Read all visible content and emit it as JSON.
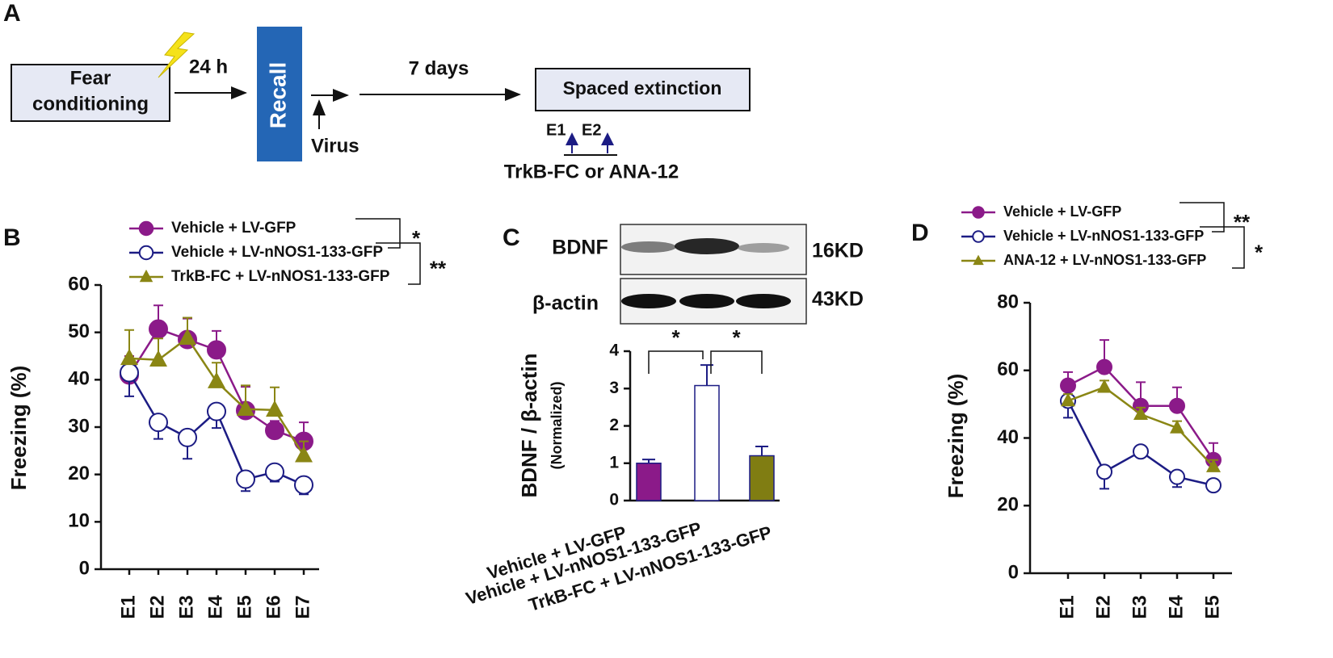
{
  "panel_labels": [
    "A",
    "B",
    "C",
    "D"
  ],
  "panel_a": {
    "step1": [
      "Fear",
      "conditioning"
    ],
    "interval1": "24 h",
    "step2": "Recall",
    "injection": "Virus",
    "interval2": "7 days",
    "step3": "Spaced extinction",
    "sessions": [
      "E1",
      "E2"
    ],
    "treatment": "TrkB-FC or ANA-12"
  },
  "blot": {
    "labels": [
      "BDNF",
      "β-actin"
    ],
    "sizes": [
      "16KD",
      "43KD"
    ]
  },
  "chart_data": [
    {
      "type": "line",
      "ylabel": "Freezing (%)",
      "categories": [
        "E1",
        "E2",
        "E3",
        "E4",
        "E5",
        "E6",
        "E7"
      ],
      "ylim": [
        0,
        60
      ],
      "yticks": [
        0,
        10,
        20,
        30,
        40,
        50,
        60
      ],
      "series": [
        {
          "name": "Vehicle + LV-GFP",
          "color": "#8b1a89",
          "marker": "circle",
          "error_direction": "up",
          "values": [
            41,
            50.7,
            48.5,
            46.3,
            33.5,
            29.3,
            27
          ],
          "errors": [
            4,
            5,
            4.4,
            4,
            5,
            2,
            4
          ]
        },
        {
          "name": "Vehicle + LV-nNOS1-133-GFP",
          "color": "#1c1c84",
          "marker": "open-circle",
          "error_direction": "down",
          "values": [
            41.5,
            31,
            27.8,
            33.3,
            19,
            20.5,
            17.8
          ],
          "errors": [
            5,
            3.5,
            4.5,
            3.5,
            2.5,
            2,
            2
          ]
        },
        {
          "name": "TrkB-FC + LV-nNOS1-133-GFP",
          "color": "#8a8614",
          "marker": "triangle",
          "error_direction": "up",
          "values": [
            44.5,
            44.2,
            48.8,
            39.6,
            33.8,
            33.6,
            24
          ],
          "errors": [
            6,
            4.5,
            4.3,
            4,
            5,
            4.8,
            3
          ]
        }
      ],
      "annotations": [
        "*",
        "**"
      ]
    },
    {
      "type": "bar",
      "ylabel": [
        "BDNF / β-actin",
        "(Normalized)"
      ],
      "categories": [
        "Vehicle + LV-GFP",
        "Vehicle + LV-nNOS1-133-GFP",
        "TrkB-FC + LV-nNOS1-133-GFP"
      ],
      "values": [
        1.0,
        3.08,
        1.2
      ],
      "errors": [
        0.1,
        0.55,
        0.25
      ],
      "colors": [
        "#8b1a89",
        "#ffffff",
        "#807d12"
      ],
      "edgecolor": "#1c1c84",
      "ylim": [
        0,
        4
      ],
      "yticks": [
        0,
        1,
        2,
        3,
        4
      ],
      "annotations": [
        "*",
        "*"
      ]
    },
    {
      "type": "line",
      "ylabel": "Freezing (%)",
      "categories": [
        "E1",
        "E2",
        "E3",
        "E4",
        "E5"
      ],
      "ylim": [
        0,
        80
      ],
      "yticks": [
        0,
        20,
        40,
        60,
        80
      ],
      "series": [
        {
          "name": "Vehicle + LV-GFP",
          "color": "#8b1a89",
          "marker": "circle",
          "error_direction": "up",
          "values": [
            55.5,
            61,
            49.5,
            49.5,
            33.5
          ],
          "errors": [
            4,
            8,
            7,
            5.5,
            5
          ]
        },
        {
          "name": "Vehicle + LV-nNOS1-133-GFP",
          "color": "#1c1c84",
          "marker": "open-circle",
          "error_direction": "down",
          "values": [
            51,
            30,
            36,
            28.5,
            26
          ],
          "errors": [
            5,
            5,
            1,
            3,
            1
          ]
        },
        {
          "name": "ANA-12 + LV-nNOS1-133-GFP",
          "color": "#8a8614",
          "marker": "triangle",
          "error_direction": "up",
          "values": [
            51,
            55,
            47,
            43,
            31.5
          ],
          "errors": [
            2,
            2,
            2,
            2,
            2
          ]
        }
      ],
      "annotations": [
        "**",
        "*"
      ]
    }
  ]
}
